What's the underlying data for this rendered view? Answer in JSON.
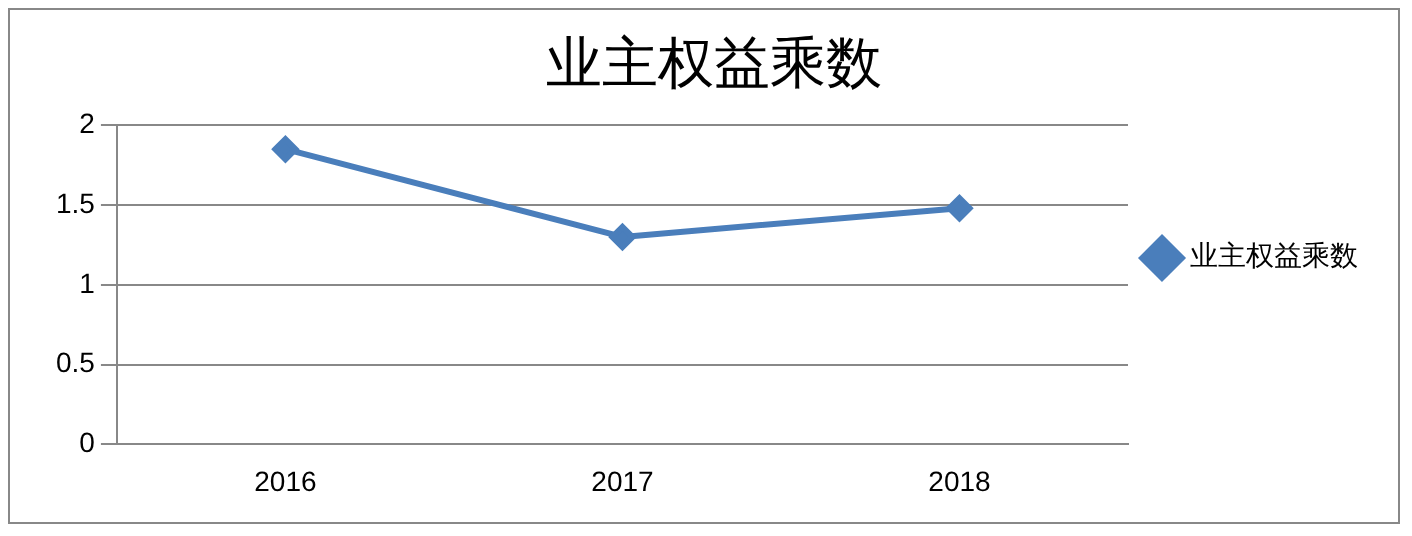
{
  "chart_data": {
    "type": "line",
    "title": "业主权益乘数",
    "categories": [
      "2016",
      "2017",
      "2018"
    ],
    "series": [
      {
        "name": "业主权益乘数",
        "color": "#4a7ebb",
        "values": [
          1.85,
          1.3,
          1.48
        ]
      }
    ],
    "ylim": [
      0,
      2
    ],
    "yticks": [
      0,
      0.5,
      1,
      1.5,
      2
    ],
    "grid": "y",
    "legend": "right",
    "marker": "diamond",
    "line_style": "solid"
  }
}
